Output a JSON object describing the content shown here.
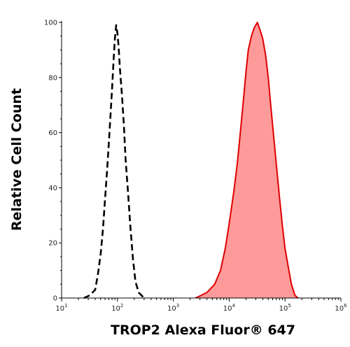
{
  "chart_data": {
    "type": "area",
    "xlabel": "TROP2 Alexa Fluor® 647",
    "ylabel": "Relative Cell Count",
    "x_scale": "log",
    "xlim": [
      10,
      1000000
    ],
    "ylim": [
      0,
      100
    ],
    "x_ticks": [
      {
        "base": "10",
        "exp": "1"
      },
      {
        "base": "10",
        "exp": "2"
      },
      {
        "base": "10",
        "exp": "3"
      },
      {
        "base": "10",
        "exp": "4"
      },
      {
        "base": "10",
        "exp": "5"
      },
      {
        "base": "10",
        "exp": "6"
      }
    ],
    "y_ticks": [
      "0",
      "20",
      "40",
      "60",
      "80",
      "100"
    ],
    "grid": false,
    "series": [
      {
        "style": "dashed",
        "color": "#000000",
        "fill": "none",
        "points": [
          [
            25,
            0
          ],
          [
            32,
            1
          ],
          [
            40,
            3
          ],
          [
            45,
            9
          ],
          [
            50,
            16
          ],
          [
            55,
            25
          ],
          [
            60,
            36
          ],
          [
            65,
            46
          ],
          [
            70,
            56
          ],
          [
            75,
            66
          ],
          [
            80,
            76
          ],
          [
            85,
            86
          ],
          [
            90,
            94
          ],
          [
            95,
            99
          ],
          [
            100,
            96
          ],
          [
            105,
            91
          ],
          [
            110,
            84
          ],
          [
            120,
            74
          ],
          [
            130,
            63
          ],
          [
            140,
            50
          ],
          [
            155,
            38
          ],
          [
            170,
            26
          ],
          [
            190,
            14
          ],
          [
            210,
            6
          ],
          [
            240,
            2
          ],
          [
            300,
            0
          ]
        ]
      },
      {
        "style": "solid",
        "color": "#dd0000",
        "fill": "#ff9a9a",
        "points": [
          [
            2500,
            0
          ],
          [
            4000,
            2
          ],
          [
            5500,
            5
          ],
          [
            7000,
            10
          ],
          [
            8500,
            18
          ],
          [
            10000,
            27
          ],
          [
            12000,
            38
          ],
          [
            14000,
            49
          ],
          [
            16000,
            61
          ],
          [
            18000,
            72
          ],
          [
            20000,
            82
          ],
          [
            22000,
            90
          ],
          [
            25000,
            95
          ],
          [
            28000,
            98
          ],
          [
            32000,
            100
          ],
          [
            36000,
            97
          ],
          [
            40000,
            94
          ],
          [
            45000,
            88
          ],
          [
            50000,
            80
          ],
          [
            56000,
            69
          ],
          [
            63000,
            58
          ],
          [
            71000,
            47
          ],
          [
            80000,
            36
          ],
          [
            90000,
            26
          ],
          [
            100000,
            18
          ],
          [
            115000,
            11
          ],
          [
            130000,
            5
          ],
          [
            150000,
            1
          ],
          [
            170000,
            0
          ]
        ]
      }
    ]
  }
}
